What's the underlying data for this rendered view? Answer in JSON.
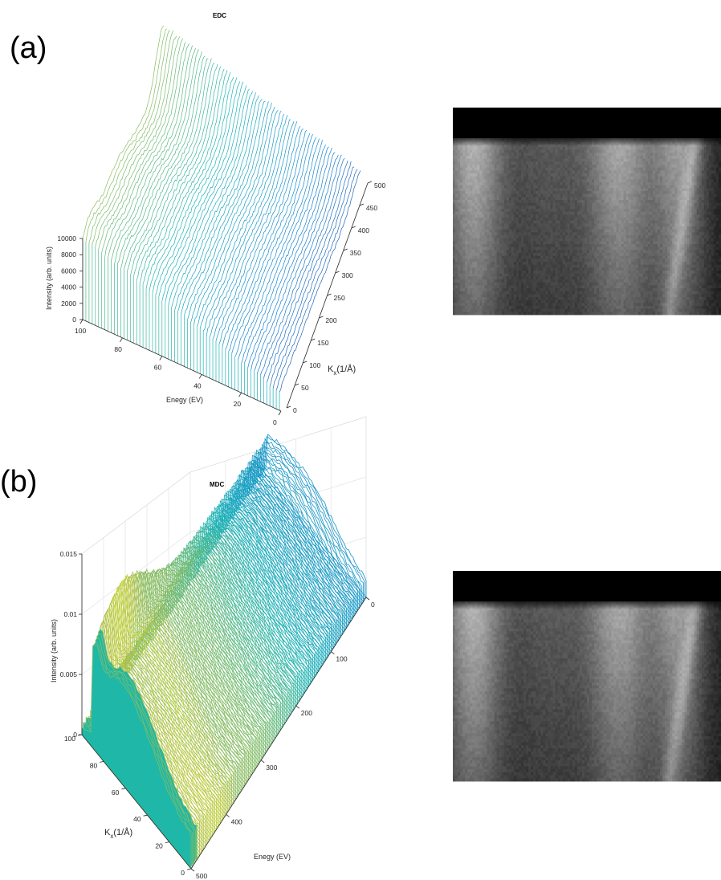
{
  "figure": {
    "panel_a": "(a)",
    "panel_b": "(b)"
  },
  "chart_data": [
    {
      "type": "waterfall",
      "title": "EDC",
      "xlabel": "Enegy (EV)",
      "ylabel_main": "K",
      "ylabel_sub": "x",
      "ylabel_unit": "(1/Å)",
      "zlabel": "Intensity (arb. units)",
      "x_ticks": [
        "100",
        "80",
        "60",
        "40",
        "20",
        "0"
      ],
      "y_ticks": [
        "0",
        "50",
        "100",
        "150",
        "200",
        "250",
        "300",
        "350",
        "400",
        "450",
        "500"
      ],
      "z_ticks": [
        "0",
        "2000",
        "4000",
        "6000",
        "8000",
        "10000"
      ],
      "xlim": [
        0,
        100
      ],
      "ylim": [
        0,
        500
      ],
      "zlim": [
        0,
        10000
      ],
      "colormap": "parula",
      "grid": false
    },
    {
      "type": "waterfall",
      "title": "MDC",
      "xlabel": "Enegy (EV)",
      "ylabel_main": "K",
      "ylabel_sub": "x",
      "ylabel_unit": "(1/Å)",
      "zlabel": "Intensity (arb. units)",
      "x_ticks": [
        "0",
        "100",
        "200",
        "300",
        "400",
        "500"
      ],
      "y_ticks": [
        "0",
        "20",
        "40",
        "60",
        "80",
        "100"
      ],
      "z_ticks": [
        "0",
        "0.005",
        "0.01",
        "0.015"
      ],
      "xlim": [
        0,
        500
      ],
      "ylim": [
        0,
        100
      ],
      "zlim": [
        0,
        0.015
      ],
      "colormap": "parula",
      "grid": true
    }
  ],
  "images": [
    {
      "name": "intensity-map-a",
      "colormap": "gray"
    },
    {
      "name": "intensity-map-b",
      "colormap": "gray"
    }
  ]
}
